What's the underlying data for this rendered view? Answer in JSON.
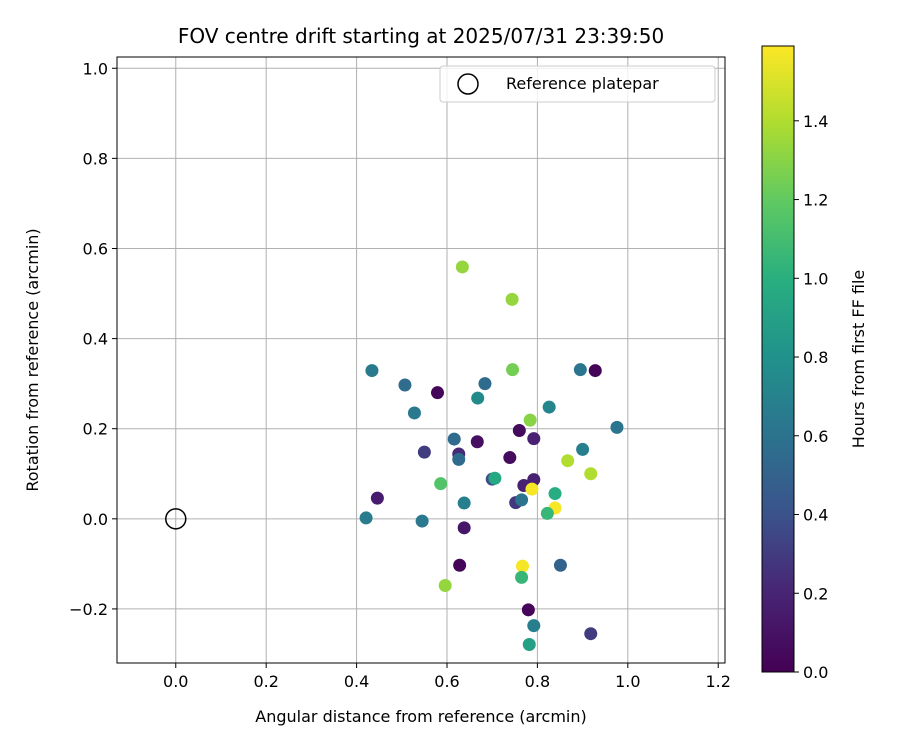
{
  "chart_data": {
    "type": "scatter",
    "title": "FOV centre drift starting at 2025/07/31 23:39:50",
    "xlabel": "Angular distance from reference (arcmin)",
    "ylabel": "Rotation from reference (arcmin)",
    "xlim": [
      -0.13,
      1.215
    ],
    "ylim": [
      -0.32,
      1.025
    ],
    "xticks": [
      0.0,
      0.2,
      0.4,
      0.6,
      0.8,
      1.0,
      1.2
    ],
    "xtick_labels": [
      "0.0",
      "0.2",
      "0.4",
      "0.6",
      "0.8",
      "1.0",
      "1.2"
    ],
    "yticks": [
      -0.2,
      0.0,
      0.2,
      0.4,
      0.6,
      0.8,
      1.0
    ],
    "ytick_labels": [
      "−0.2",
      "0.0",
      "0.2",
      "0.4",
      "0.6",
      "0.8",
      "1.0"
    ],
    "grid": true,
    "legend": {
      "position": "upper-right",
      "label": "Reference platepar"
    },
    "reference_point": {
      "x": 0.0,
      "y": 0.0
    },
    "colorbar": {
      "label": "Hours from first FF file",
      "colormap": "viridis",
      "range": [
        0.0,
        1.59
      ],
      "ticks": [
        0.0,
        0.2,
        0.4,
        0.6,
        0.8,
        1.0,
        1.2,
        1.4
      ],
      "tick_labels": [
        "0.0",
        "0.2",
        "0.4",
        "0.6",
        "0.8",
        "1.0",
        "1.2",
        "1.4"
      ]
    },
    "points": [
      {
        "x": 0.634,
        "y": 0.559,
        "c": 1.33
      },
      {
        "x": 0.744,
        "y": 0.487,
        "c": 1.33
      },
      {
        "x": 0.434,
        "y": 0.329,
        "c": 0.65
      },
      {
        "x": 0.745,
        "y": 0.331,
        "c": 1.25
      },
      {
        "x": 0.895,
        "y": 0.331,
        "c": 0.62
      },
      {
        "x": 0.928,
        "y": 0.329,
        "c": 0.02
      },
      {
        "x": 0.507,
        "y": 0.297,
        "c": 0.56
      },
      {
        "x": 0.579,
        "y": 0.28,
        "c": 0.03
      },
      {
        "x": 0.684,
        "y": 0.3,
        "c": 0.55
      },
      {
        "x": 0.668,
        "y": 0.268,
        "c": 0.75
      },
      {
        "x": 0.528,
        "y": 0.235,
        "c": 0.64
      },
      {
        "x": 0.784,
        "y": 0.219,
        "c": 1.3
      },
      {
        "x": 0.826,
        "y": 0.248,
        "c": 0.72
      },
      {
        "x": 0.976,
        "y": 0.203,
        "c": 0.62
      },
      {
        "x": 0.616,
        "y": 0.177,
        "c": 0.55
      },
      {
        "x": 0.667,
        "y": 0.171,
        "c": 0.08
      },
      {
        "x": 0.76,
        "y": 0.196,
        "c": 0.05
      },
      {
        "x": 0.792,
        "y": 0.178,
        "c": 0.18
      },
      {
        "x": 0.9,
        "y": 0.154,
        "c": 0.68
      },
      {
        "x": 0.55,
        "y": 0.148,
        "c": 0.3
      },
      {
        "x": 0.626,
        "y": 0.144,
        "c": 0.22
      },
      {
        "x": 0.626,
        "y": 0.132,
        "c": 0.55
      },
      {
        "x": 0.739,
        "y": 0.136,
        "c": 0.06
      },
      {
        "x": 0.867,
        "y": 0.129,
        "c": 1.4
      },
      {
        "x": 0.918,
        "y": 0.1,
        "c": 1.4
      },
      {
        "x": 0.7,
        "y": 0.088,
        "c": 0.38
      },
      {
        "x": 0.706,
        "y": 0.09,
        "c": 0.95
      },
      {
        "x": 0.792,
        "y": 0.087,
        "c": 0.18
      },
      {
        "x": 0.586,
        "y": 0.078,
        "c": 1.15
      },
      {
        "x": 0.77,
        "y": 0.074,
        "c": 0.18
      },
      {
        "x": 0.788,
        "y": 0.066,
        "c": 1.57
      },
      {
        "x": 0.839,
        "y": 0.056,
        "c": 0.98
      },
      {
        "x": 0.446,
        "y": 0.046,
        "c": 0.15
      },
      {
        "x": 0.638,
        "y": 0.035,
        "c": 0.68
      },
      {
        "x": 0.752,
        "y": 0.036,
        "c": 0.28
      },
      {
        "x": 0.765,
        "y": 0.042,
        "c": 0.6
      },
      {
        "x": 0.839,
        "y": 0.024,
        "c": 1.58
      },
      {
        "x": 0.822,
        "y": 0.012,
        "c": 1.05
      },
      {
        "x": 0.421,
        "y": 0.002,
        "c": 0.66
      },
      {
        "x": 0.545,
        "y": -0.005,
        "c": 0.64
      },
      {
        "x": 0.638,
        "y": -0.02,
        "c": 0.12
      },
      {
        "x": 0.628,
        "y": -0.103,
        "c": 0.03
      },
      {
        "x": 0.851,
        "y": -0.103,
        "c": 0.5
      },
      {
        "x": 0.767,
        "y": -0.105,
        "c": 1.57
      },
      {
        "x": 0.765,
        "y": -0.13,
        "c": 1.05
      },
      {
        "x": 0.596,
        "y": -0.148,
        "c": 1.33
      },
      {
        "x": 0.78,
        "y": -0.202,
        "c": 0.03
      },
      {
        "x": 0.792,
        "y": -0.237,
        "c": 0.68
      },
      {
        "x": 0.918,
        "y": -0.255,
        "c": 0.3
      },
      {
        "x": 0.782,
        "y": -0.279,
        "c": 0.9
      }
    ]
  }
}
